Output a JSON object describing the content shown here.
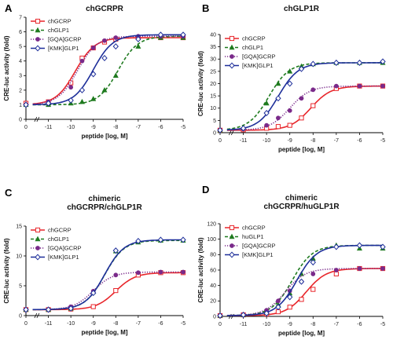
{
  "chart_data": [
    {
      "type": "line",
      "letter": "A",
      "title": [
        "chGCRPR"
      ],
      "xlabel": "peptide [log, M]",
      "ylabel": "CRE-luc activity (fold)",
      "xlim": [
        -12,
        -5
      ],
      "ylim": [
        0,
        7
      ],
      "xticks": [
        "0",
        "-11",
        "-10",
        "-9",
        "-8",
        "-7",
        "-6",
        "-5"
      ],
      "yticks": [
        0,
        1,
        2,
        3,
        4,
        5,
        6,
        7
      ],
      "legend_position": "top-left",
      "x": [
        -12,
        -11,
        -10,
        -9.5,
        -9,
        -8.5,
        -8,
        -7,
        -6,
        -5
      ],
      "series": [
        {
          "name": "chGCRP",
          "color": "#e8262b",
          "marker": "square-open",
          "dash": "solid",
          "bottom": 1.0,
          "top": 5.6,
          "ec50": -9.8,
          "values": [
            1.1,
            1.2,
            2.5,
            4.2,
            4.9,
            5.3,
            5.5,
            5.6,
            5.6,
            5.6
          ]
        },
        {
          "name": "chGLP1",
          "color": "#1e7a1e",
          "marker": "triangle",
          "dash": "dash",
          "bottom": 1.0,
          "top": 5.7,
          "ec50": -7.9,
          "values": [
            1.0,
            1.0,
            1.1,
            1.2,
            1.4,
            2.0,
            3.0,
            5.0,
            5.6,
            5.6
          ]
        },
        {
          "name": "[GQA]GCRP",
          "color": "#7a2a8a",
          "marker": "circle",
          "dash": "dot",
          "bottom": 1.0,
          "top": 5.7,
          "ec50": -9.7,
          "values": [
            1.0,
            1.2,
            2.2,
            4.0,
            4.9,
            5.4,
            5.6,
            5.7,
            5.7,
            5.7
          ]
        },
        {
          "name": "[KMK]GLP1",
          "color": "#1e2f9a",
          "marker": "diamond-open",
          "dash": "solid",
          "bottom": 1.0,
          "top": 5.8,
          "ec50": -9.0,
          "values": [
            1.0,
            1.1,
            1.3,
            2.0,
            3.1,
            4.2,
            5.0,
            5.5,
            5.8,
            5.8
          ]
        }
      ]
    },
    {
      "type": "line",
      "letter": "B",
      "title": [
        "chGLP1R"
      ],
      "xlabel": "peptide [log, M]",
      "ylabel": "CRE-luc activity (fold)",
      "xlim": [
        -12,
        -5
      ],
      "ylim": [
        0,
        40
      ],
      "xticks": [
        "0",
        "-11",
        "-10",
        "-9",
        "-8",
        "-7",
        "-6",
        "-5"
      ],
      "yticks": [
        0,
        5,
        10,
        15,
        20,
        25,
        30,
        35,
        40
      ],
      "legend_position": "top-left",
      "x": [
        -12,
        -11,
        -10,
        -9.5,
        -9,
        -8.5,
        -8,
        -7,
        -6,
        -5
      ],
      "series": [
        {
          "name": "chGCRP",
          "color": "#e8262b",
          "marker": "square-open",
          "dash": "solid",
          "bottom": 1.0,
          "top": 19.0,
          "ec50": -8.1,
          "values": [
            1.0,
            1.2,
            1.8,
            2.5,
            3.0,
            6.0,
            11.0,
            18.0,
            19.0,
            19.0
          ]
        },
        {
          "name": "chGLP1",
          "color": "#1e7a1e",
          "marker": "triangle",
          "dash": "dash",
          "bottom": 1.0,
          "top": 28.5,
          "ec50": -9.9,
          "values": [
            1.0,
            2.0,
            12.0,
            20.0,
            25.0,
            27.0,
            28.0,
            28.5,
            28.5,
            28.5
          ]
        },
        {
          "name": "[GQA]GCRP",
          "color": "#7a2a8a",
          "marker": "circle",
          "dash": "dot",
          "bottom": 1.0,
          "top": 19.0,
          "ec50": -9.0,
          "values": [
            1.0,
            1.5,
            3.0,
            6.0,
            9.0,
            14.0,
            17.5,
            19.0,
            19.0,
            19.0
          ]
        },
        {
          "name": "[KMK]GLP1",
          "color": "#1e2f9a",
          "marker": "diamond-open",
          "dash": "solid",
          "bottom": 1.0,
          "top": 28.5,
          "ec50": -9.5,
          "values": [
            1.0,
            1.8,
            8.0,
            14.0,
            20.0,
            26.0,
            28.0,
            28.5,
            28.5,
            29.0
          ]
        }
      ]
    },
    {
      "type": "line",
      "letter": "C",
      "title": [
        "chimeric",
        "chGCRPR/chGLP1R"
      ],
      "xlabel": "peptide [log, M]",
      "ylabel": "CRE-luc activity (fold)",
      "xlim": [
        -12,
        -5
      ],
      "ylim": [
        0,
        15
      ],
      "xticks": [
        "0",
        "-11",
        "-10",
        "-9",
        "-8",
        "-7",
        "-6",
        "-5"
      ],
      "yticks": [
        0,
        5,
        10,
        15
      ],
      "legend_position": "top-left",
      "x": [
        -12,
        -11,
        -10,
        -9,
        -8,
        -7,
        -6,
        -5
      ],
      "series": [
        {
          "name": "chGCRP",
          "color": "#e8262b",
          "marker": "square-open",
          "dash": "solid",
          "bottom": 1.0,
          "top": 7.2,
          "ec50": -8.0,
          "values": [
            1.0,
            1.0,
            1.1,
            1.5,
            4.2,
            6.8,
            7.2,
            7.2
          ]
        },
        {
          "name": "chGLP1",
          "color": "#1e7a1e",
          "marker": "triangle",
          "dash": "dash",
          "bottom": 1.0,
          "top": 12.6,
          "ec50": -8.5,
          "values": [
            1.0,
            1.0,
            1.2,
            4.0,
            10.8,
            12.3,
            12.6,
            12.6
          ]
        },
        {
          "name": "[GQA]GCRP",
          "color": "#7a2a8a",
          "marker": "circle",
          "dash": "dot",
          "bottom": 1.0,
          "top": 7.3,
          "ec50": -9.0,
          "values": [
            1.0,
            1.0,
            1.5,
            4.1,
            6.8,
            7.2,
            7.3,
            7.3
          ]
        },
        {
          "name": "[KMK]GLP1",
          "color": "#1e2f9a",
          "marker": "diamond-open",
          "dash": "solid",
          "bottom": 1.0,
          "top": 12.7,
          "ec50": -8.5,
          "values": [
            1.0,
            1.0,
            1.2,
            3.8,
            10.9,
            12.5,
            12.7,
            12.7
          ]
        }
      ]
    },
    {
      "type": "line",
      "letter": "D",
      "title": [
        "chimeric",
        "chGCRPR/huGLP1R"
      ],
      "xlabel": "peptide [log, M]",
      "ylabel": "CRE-luc activity (fold)",
      "xlim": [
        -12,
        -5
      ],
      "ylim": [
        0,
        120
      ],
      "xticks": [
        "0",
        "-11",
        "-10",
        "-9",
        "-8",
        "-7",
        "-6",
        "-5"
      ],
      "yticks": [
        0,
        20,
        40,
        60,
        80,
        100,
        120
      ],
      "legend_position": "top-left",
      "x": [
        -12,
        -11,
        -10,
        -9.5,
        -9,
        -8.5,
        -8,
        -7,
        -6,
        -5
      ],
      "series": [
        {
          "name": "chGCRP",
          "color": "#e8262b",
          "marker": "square-open",
          "dash": "solid",
          "bottom": 1.0,
          "top": 62,
          "ec50": -8.3,
          "values": [
            1,
            2,
            3,
            6,
            12,
            22,
            35,
            55,
            62,
            62
          ]
        },
        {
          "name": "huGLP1",
          "color": "#1e7a1e",
          "marker": "triangle",
          "dash": "dash",
          "bottom": 1.0,
          "top": 92,
          "ec50": -8.9,
          "values": [
            1,
            2,
            5,
            15,
            30,
            55,
            75,
            92,
            88,
            88
          ]
        },
        {
          "name": "[GQA]GCRP",
          "color": "#7a2a8a",
          "marker": "circle",
          "dash": "dot",
          "bottom": 1.0,
          "top": 62,
          "ec50": -9.2,
          "values": [
            1,
            2,
            8,
            20,
            33,
            45,
            55,
            60,
            62,
            62
          ]
        },
        {
          "name": "[KMK]GLP1",
          "color": "#1e2f9a",
          "marker": "diamond-open",
          "dash": "solid",
          "bottom": 1.0,
          "top": 92,
          "ec50": -8.7,
          "values": [
            1,
            2,
            4,
            12,
            25,
            45,
            70,
            90,
            92,
            90
          ]
        }
      ]
    }
  ]
}
